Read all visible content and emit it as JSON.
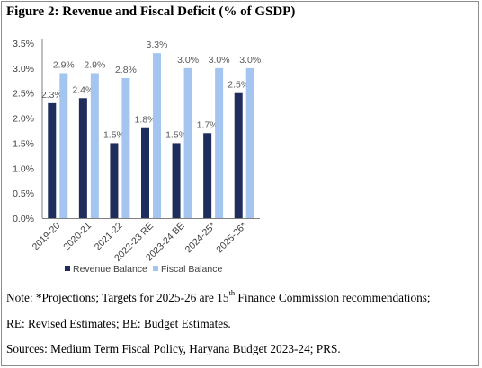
{
  "title": "Figure 2: Revenue and Fiscal Deficit (% of GSDP)",
  "colors": {
    "revenue": "#1f2d5c",
    "fiscal": "#a3c5f0"
  },
  "chart_data": {
    "type": "bar",
    "categories": [
      "2019-20",
      "2020-21",
      "2021-22",
      "2022-23 RE",
      "2023-24 BE",
      "2024-25*",
      "2025-26*"
    ],
    "series": [
      {
        "name": "Revenue Balance",
        "values": [
          2.3,
          2.4,
          1.5,
          1.8,
          1.5,
          1.7,
          2.5
        ],
        "labels": [
          "2.3%",
          "2.4%",
          "1.5%",
          "1.8%",
          "1.5%",
          "1.7%",
          "2.5%"
        ]
      },
      {
        "name": "Fiscal Balance",
        "values": [
          2.9,
          2.9,
          2.8,
          3.3,
          3.0,
          3.0,
          3.0
        ],
        "labels": [
          "2.9%",
          "2.9%",
          "2.8%",
          "3.3%",
          "3.0%",
          "3.0%",
          "3.0%"
        ]
      }
    ],
    "yticks": [
      "0.0%",
      "0.5%",
      "1.0%",
      "1.5%",
      "2.0%",
      "2.5%",
      "3.0%",
      "3.5%"
    ],
    "ylim": [
      0,
      3.5
    ],
    "legend_position": "bottom",
    "grid": false
  },
  "notes": {
    "line1_pre": "Note: *Projections; Targets for 2025-26 are 15",
    "line1_sup": "th",
    "line1_post": " Finance Commission recommendations;",
    "line2": "RE: Revised Estimates; BE: Budget Estimates.",
    "line3": "Sources: Medium Term Fiscal Policy, Haryana Budget 2023-24; PRS."
  }
}
